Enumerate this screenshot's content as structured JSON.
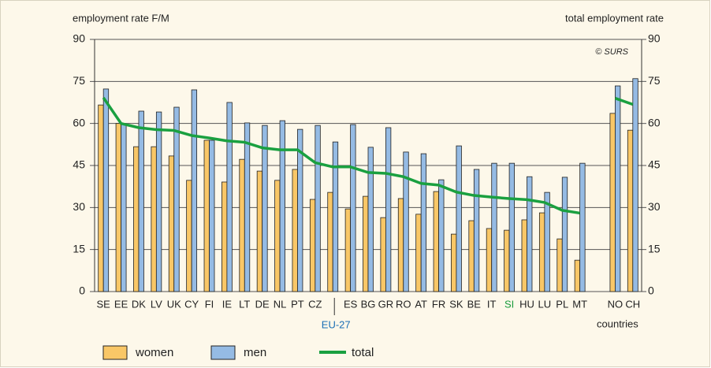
{
  "chart_data": {
    "type": "bar_line",
    "y_label": "employment rate F/M",
    "y2_label": "total employment rate",
    "x_label": "countries",
    "annotation": "© SURS",
    "categories": [
      "SE",
      "EE",
      "DK",
      "LV",
      "UK",
      "CY",
      "FI",
      "IE",
      "LT",
      "DE",
      "NL",
      "PT",
      "CZ",
      "EU-27",
      "ES",
      "BG",
      "GR",
      "RO",
      "AT",
      "FR",
      "SK",
      "BE",
      "IT",
      "SI",
      "HU",
      "LU",
      "PL",
      "MT",
      null,
      "NO",
      "CH"
    ],
    "label_colors": [
      null,
      null,
      null,
      null,
      null,
      null,
      null,
      null,
      null,
      null,
      null,
      null,
      null,
      "#1a6fb5",
      null,
      null,
      null,
      null,
      null,
      null,
      null,
      null,
      null,
      "#1a9b3c",
      null,
      null,
      null,
      null,
      null,
      null,
      null
    ],
    "reference_category_index": 13,
    "series": [
      {
        "name": "women",
        "color": "#f9c767",
        "values": [
          66.6,
          60,
          51.7,
          51.7,
          48.4,
          39.7,
          54,
          39.1,
          47.2,
          43,
          39.7,
          43.6,
          32.9,
          35.4,
          29.5,
          34,
          26.4,
          33.2,
          27.6,
          35.7,
          20.5,
          25.3,
          22.5,
          21.9,
          25.6,
          28.1,
          18.8,
          11.2,
          null,
          63.6,
          57.6
        ]
      },
      {
        "name": "men",
        "color": "#95bbe4",
        "values": [
          72.3,
          60,
          64.4,
          64.1,
          65.8,
          72,
          54,
          67.5,
          60.2,
          59.3,
          61,
          57.9,
          59.3,
          53.4,
          59.6,
          51.5,
          58.5,
          49.8,
          49.2,
          39.9,
          52,
          43.6,
          45.8,
          45.8,
          41,
          35.4,
          40.8,
          45.8,
          null,
          73.4,
          76
        ]
      },
      {
        "name": "total",
        "color": "#1aa040",
        "axis": "y2",
        "type": "line",
        "values": [
          69.2,
          60,
          58.5,
          57.8,
          57.5,
          55.7,
          54.8,
          53.8,
          53.3,
          51.3,
          50.6,
          50.6,
          46,
          44.5,
          44.5,
          42.5,
          42.2,
          41,
          38.6,
          38,
          35.5,
          34.3,
          33.7,
          33.2,
          32.8,
          31.8,
          29,
          28,
          null,
          69,
          66.8
        ]
      }
    ],
    "ylim": [
      0,
      90
    ],
    "yticks": [
      0,
      15,
      30,
      45,
      60,
      75,
      90
    ],
    "y2lim": [
      0,
      90
    ],
    "y2ticks": [
      0,
      15,
      30,
      45,
      60,
      75,
      90
    ],
    "grid": true
  }
}
